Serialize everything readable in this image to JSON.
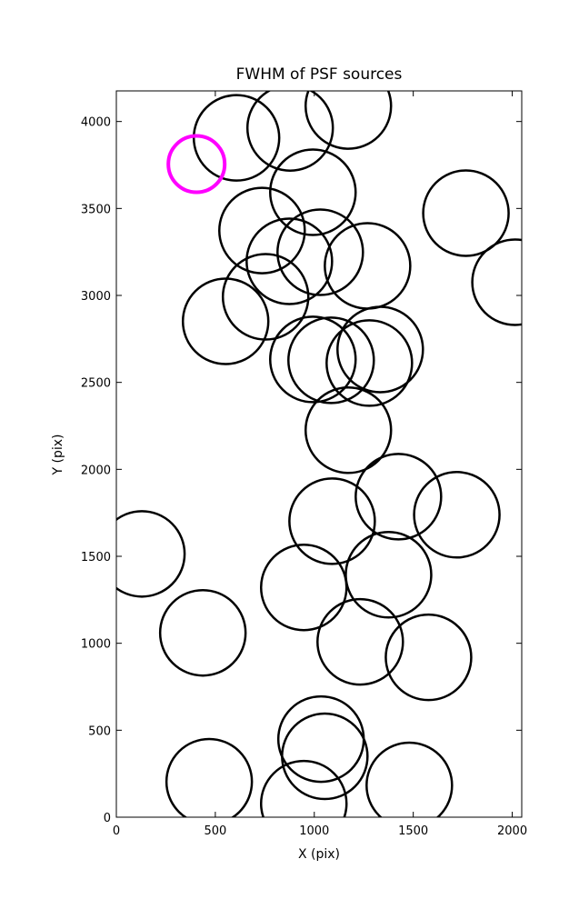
{
  "chart_data": {
    "type": "scatter",
    "title": "FWHM of PSF sources",
    "x_label": "X (pix)",
    "y_label": "Y (pix)",
    "xlim": [
      0,
      2048
    ],
    "ylim": [
      0,
      4176
    ],
    "xticks": [
      0,
      500,
      1000,
      1500,
      2000
    ],
    "yticks": [
      0,
      500,
      1000,
      1500,
      2000,
      2500,
      3000,
      3500,
      4000
    ],
    "series": [
      {
        "color": "#000000",
        "marker_size": 47,
        "x": [
          607,
          878,
          1172,
          993,
          736,
          874,
          1030,
          1269,
          754,
          552,
          993,
          1085,
          1333,
          1278,
          1172,
          1766,
          2014,
          1425,
          1720,
          1090,
          1375,
          947,
          129,
          437,
          1232,
          1577,
          1034,
          1053,
          469,
          1480,
          947
        ],
        "y": [
          3906,
          3963,
          4089,
          3593,
          3373,
          3196,
          3248,
          3170,
          2992,
          2851,
          2632,
          2627,
          2689,
          2611,
          2225,
          3473,
          3076,
          1843,
          1739,
          1702,
          1394,
          1321,
          1514,
          1060,
          1008,
          919,
          449,
          350,
          204,
          183,
          78
        ]
      },
      {
        "color": "#ff00ff",
        "marker_size": 31,
        "x": [
          405
        ],
        "y": [
          3755
        ]
      }
    ]
  }
}
